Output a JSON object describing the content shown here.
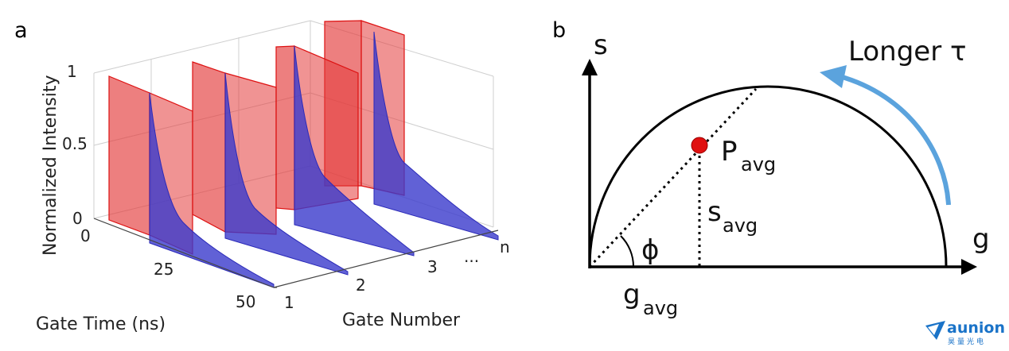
{
  "panel_a": {
    "label": "a",
    "y_axis_label": "Normalized Intensity",
    "y_ticks": [
      "1",
      "0.5",
      "0"
    ],
    "x_ticks": [
      "0",
      "25",
      "50"
    ],
    "x_axis_label": "Gate Time (ns)",
    "gate_ticks": [
      "1",
      "2",
      "3",
      "...",
      "n"
    ],
    "gate_axis_label": "Gate Number",
    "gate_color": "#e33b3b",
    "decay_color": "#3a39cc"
  },
  "panel_b": {
    "label": "b",
    "y_label": "s",
    "x_label": "g",
    "arrow_text": "Longer τ",
    "arrow_color": "#5ba3dd",
    "point_label_main": "P",
    "point_label_sub": "avg",
    "s_label_main": "s",
    "s_label_sub": "avg",
    "g_label_main": "g",
    "g_label_sub": "avg",
    "angle_label": "ϕ",
    "point_color": "#e01010"
  },
  "logo": {
    "word": "aunion",
    "chinese": "昊量光电",
    "color": "#1a73c8"
  }
}
